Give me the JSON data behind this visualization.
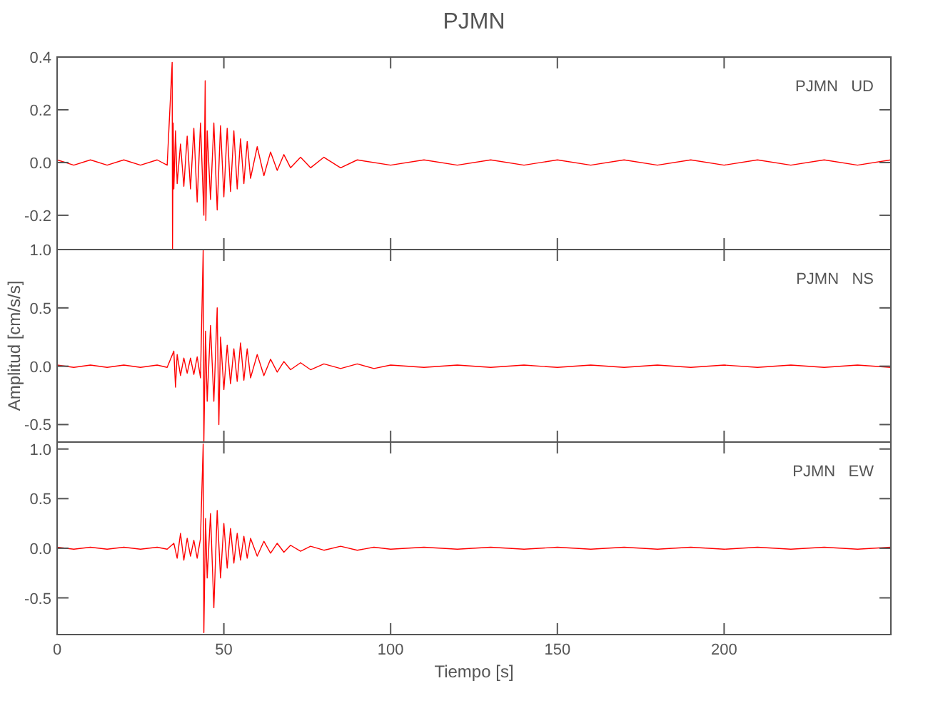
{
  "chart_data": [
    {
      "type": "line",
      "title": "PJMN",
      "annotations": [
        "PJMN   UD"
      ],
      "xlim": [
        0,
        250
      ],
      "xticks": [
        0,
        50,
        100,
        150,
        200
      ],
      "ylim": [
        -0.33,
        0.4
      ],
      "yticks": [
        {
          "value": -0.2,
          "label": "-0.2"
        },
        {
          "value": 0,
          "label": "0.0"
        },
        {
          "value": 0.2,
          "label": "0.2"
        },
        {
          "value": 0.4,
          "label": "0.4"
        }
      ],
      "tick_labels": "y",
      "grid": false,
      "line_style": "solid",
      "series": [
        {
          "color": "#ff0000",
          "x": [
            0,
            5,
            10,
            15,
            20,
            25,
            30,
            33,
            34.5,
            34.6,
            34.8,
            35,
            35.5,
            36,
            37,
            38,
            39,
            40,
            41,
            42,
            43,
            44,
            44.4,
            44.6,
            45,
            46,
            47,
            48,
            49,
            50,
            51,
            52,
            53,
            54,
            55,
            56,
            57,
            58,
            60,
            62,
            64,
            66,
            68,
            70,
            73,
            76,
            80,
            85,
            90,
            100,
            110,
            120,
            130,
            140,
            150,
            160,
            170,
            180,
            190,
            200,
            210,
            220,
            230,
            240,
            250
          ],
          "values": [
            0.01,
            -0.01,
            0.01,
            -0.01,
            0.01,
            -0.01,
            0.01,
            -0.01,
            0.38,
            -0.33,
            0.15,
            -0.1,
            0.12,
            -0.08,
            0.07,
            -0.09,
            0.1,
            -0.1,
            0.13,
            -0.15,
            0.15,
            -0.2,
            0.31,
            -0.22,
            0.12,
            -0.14,
            0.15,
            -0.18,
            0.14,
            -0.13,
            0.13,
            -0.11,
            0.12,
            -0.1,
            0.09,
            -0.08,
            0.08,
            -0.06,
            0.06,
            -0.05,
            0.04,
            -0.03,
            0.03,
            -0.02,
            0.02,
            -0.02,
            0.02,
            -0.02,
            0.01,
            -0.01,
            0.01,
            -0.01,
            0.01,
            -0.01,
            0.01,
            -0.01,
            0.01,
            -0.01,
            0.01,
            -0.01,
            0.01,
            -0.01,
            0.01,
            -0.01,
            0.01
          ]
        }
      ]
    },
    {
      "type": "line",
      "ylabel": "Amplitud [cm/s/s]",
      "annotations": [
        "PJMN   NS"
      ],
      "xlim": [
        0,
        250
      ],
      "xticks": [
        0,
        50,
        100,
        150,
        200
      ],
      "ylim": [
        -0.65,
        1.0
      ],
      "yticks": [
        {
          "value": -0.5,
          "label": "-0.5"
        },
        {
          "value": 0,
          "label": "0.0"
        },
        {
          "value": 0.5,
          "label": "0.5"
        },
        {
          "value": 1,
          "label": "1.0"
        }
      ],
      "tick_labels": "y",
      "grid": false,
      "line_style": "solid",
      "series": [
        {
          "color": "#ff0000",
          "x": [
            0,
            5,
            10,
            15,
            20,
            25,
            30,
            33,
            35,
            35.5,
            36,
            37,
            38,
            39,
            40,
            41,
            42,
            43,
            43.8,
            44,
            44.5,
            45,
            46,
            47,
            48,
            48.5,
            49,
            50,
            51,
            52,
            53,
            54,
            55,
            56,
            57,
            58,
            60,
            62,
            64,
            66,
            68,
            70,
            73,
            76,
            80,
            85,
            90,
            95,
            100,
            110,
            120,
            130,
            140,
            150,
            160,
            170,
            180,
            190,
            200,
            210,
            220,
            230,
            240,
            250
          ],
          "values": [
            0.01,
            -0.01,
            0.01,
            -0.01,
            0.01,
            -0.01,
            0.01,
            -0.01,
            0.13,
            -0.18,
            0.1,
            -0.08,
            0.07,
            -0.06,
            0.07,
            -0.07,
            0.08,
            -0.1,
            1.0,
            -0.65,
            0.3,
            -0.3,
            0.35,
            -0.3,
            0.5,
            -0.5,
            0.25,
            -0.2,
            0.18,
            -0.15,
            0.15,
            -0.13,
            0.2,
            -0.12,
            0.15,
            -0.1,
            0.1,
            -0.08,
            0.06,
            -0.05,
            0.04,
            -0.03,
            0.03,
            -0.03,
            0.02,
            -0.02,
            0.02,
            -0.02,
            0.01,
            -0.01,
            0.01,
            -0.01,
            0.01,
            -0.01,
            0.01,
            -0.01,
            0.01,
            -0.01,
            0.01,
            -0.01,
            0.01,
            -0.01,
            0.01,
            -0.01
          ]
        }
      ]
    },
    {
      "type": "line",
      "xlabel": "Tiempo [s]",
      "annotations": [
        "PJMN   EW"
      ],
      "xlim": [
        0,
        250
      ],
      "xticks": [
        0,
        50,
        100,
        150,
        200
      ],
      "ylim": [
        -0.87,
        1.07
      ],
      "yticks": [
        {
          "value": -0.5,
          "label": "-0.5"
        },
        {
          "value": 0,
          "label": "0.0"
        },
        {
          "value": 0.5,
          "label": "0.5"
        },
        {
          "value": 1,
          "label": "1.0"
        }
      ],
      "grid": false,
      "line_style": "solid",
      "series": [
        {
          "color": "#ff0000",
          "x": [
            0,
            5,
            10,
            15,
            20,
            25,
            30,
            33,
            35,
            36,
            37,
            38,
            39,
            40,
            41,
            42,
            43,
            43.8,
            44,
            44.5,
            45,
            46,
            47,
            48,
            49,
            50,
            51,
            52,
            53,
            54,
            55,
            56,
            57,
            58,
            60,
            62,
            64,
            66,
            68,
            70,
            73,
            76,
            80,
            85,
            90,
            95,
            100,
            110,
            120,
            130,
            140,
            150,
            160,
            170,
            180,
            190,
            200,
            210,
            220,
            230,
            240,
            250
          ],
          "values": [
            0.01,
            -0.01,
            0.01,
            -0.01,
            0.01,
            -0.01,
            0.01,
            -0.01,
            0.05,
            -0.1,
            0.15,
            -0.12,
            0.1,
            -0.08,
            0.08,
            -0.1,
            0.1,
            1.05,
            -0.85,
            0.3,
            -0.3,
            0.35,
            -0.6,
            0.38,
            -0.3,
            0.25,
            -0.2,
            0.2,
            -0.15,
            0.15,
            -0.12,
            0.12,
            -0.1,
            0.1,
            -0.08,
            0.07,
            -0.05,
            0.05,
            -0.04,
            0.03,
            -0.03,
            0.02,
            -0.02,
            0.02,
            -0.02,
            0.01,
            -0.01,
            0.01,
            -0.01,
            0.01,
            -0.01,
            0.01,
            -0.01,
            0.01,
            -0.01,
            0.01,
            -0.01,
            0.01,
            -0.01,
            0.01,
            -0.01,
            0.01
          ]
        }
      ]
    }
  ]
}
